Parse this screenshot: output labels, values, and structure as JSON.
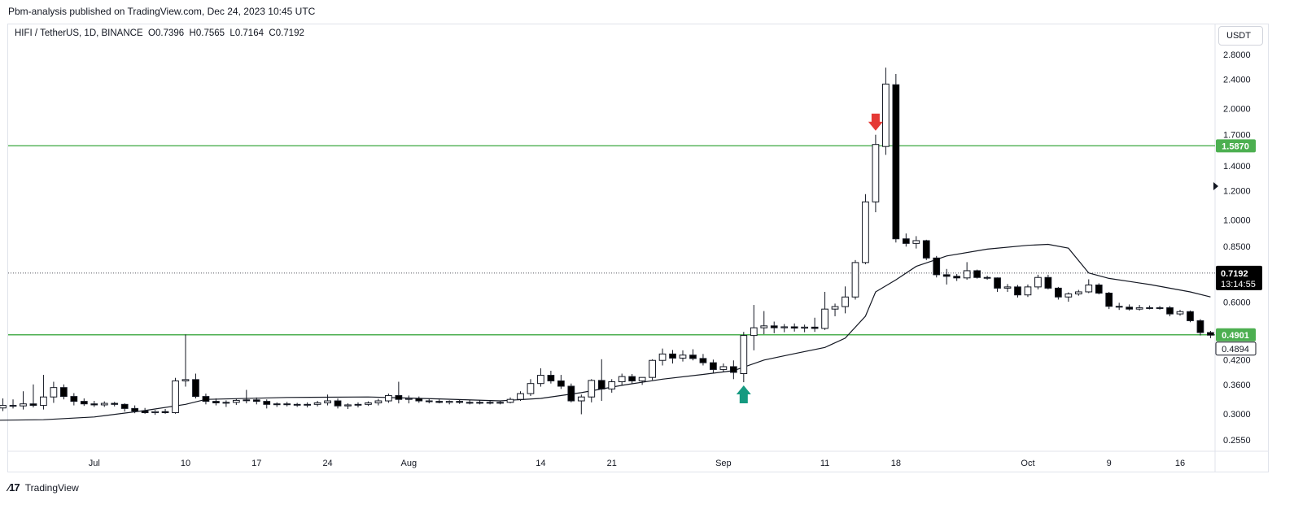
{
  "header": {
    "publisher_line": "Pbm-analysis published on TradingView.com, Dec 24, 2023 10:45 UTC"
  },
  "legend": {
    "symbol": "HIFI / TetherUS, 1D, BINANCE",
    "open": "O0.7396",
    "high": "H0.7565",
    "low": "L0.7164",
    "close": "C0.7192"
  },
  "currency_button": {
    "label": "USDT"
  },
  "footer": {
    "brand": "TradingView"
  },
  "colors": {
    "level_line": "#4caf50",
    "bear_candle": "#000000",
    "bull_candle": "#ffffff",
    "sell_arrow": "#e53935",
    "buy_arrow": "#159a80",
    "price_tag": "#000000"
  },
  "chart_data": {
    "type": "candlestick",
    "scale": "log",
    "y_ticks": [
      "2.8000",
      "2.4000",
      "2.0000",
      "1.7000",
      "1.4000",
      "1.2000",
      "1.0000",
      "0.8500",
      "0.6000",
      "0.4200",
      "0.3600",
      "0.3000",
      "0.2550"
    ],
    "x_ticks": [
      {
        "label": "Jul",
        "date": "2023-07-01"
      },
      {
        "label": "10",
        "date": "2023-07-10"
      },
      {
        "label": "17",
        "date": "2023-07-17"
      },
      {
        "label": "24",
        "date": "2023-07-24"
      },
      {
        "label": "Aug",
        "date": "2023-08-01"
      },
      {
        "label": "14",
        "date": "2023-08-14"
      },
      {
        "label": "21",
        "date": "2023-08-21"
      },
      {
        "label": "Sep",
        "date": "2023-09-01"
      },
      {
        "label": "11",
        "date": "2023-09-11"
      },
      {
        "label": "18",
        "date": "2023-09-18"
      },
      {
        "label": "Oct",
        "date": "2023-10-01"
      },
      {
        "label": "9",
        "date": "2023-10-09"
      },
      {
        "label": "16",
        "date": "2023-10-16"
      }
    ],
    "horizontal_levels": [
      {
        "value": 1.587,
        "label": "1.5870"
      },
      {
        "value": 0.4901,
        "label": "0.4901"
      }
    ],
    "last_price": {
      "value": 0.7192,
      "label": "0.7192",
      "countdown": "13:14:55"
    },
    "secondary_price": {
      "value": 0.4894,
      "label": "0.4894"
    },
    "candles": [
      {
        "date": "2023-06-21",
        "o": 0.305,
        "h": 0.318,
        "l": 0.296,
        "c": 0.311
      },
      {
        "date": "2023-06-22",
        "o": 0.311,
        "h": 0.33,
        "l": 0.305,
        "c": 0.316
      },
      {
        "date": "2023-06-23",
        "o": 0.316,
        "h": 0.328,
        "l": 0.31,
        "c": 0.315
      },
      {
        "date": "2023-06-24",
        "o": 0.315,
        "h": 0.345,
        "l": 0.308,
        "c": 0.319
      },
      {
        "date": "2023-06-25",
        "o": 0.319,
        "h": 0.36,
        "l": 0.312,
        "c": 0.316
      },
      {
        "date": "2023-06-26",
        "o": 0.316,
        "h": 0.382,
        "l": 0.308,
        "c": 0.333
      },
      {
        "date": "2023-06-27",
        "o": 0.333,
        "h": 0.366,
        "l": 0.321,
        "c": 0.353
      },
      {
        "date": "2023-06-28",
        "o": 0.353,
        "h": 0.36,
        "l": 0.328,
        "c": 0.334
      },
      {
        "date": "2023-06-29",
        "o": 0.334,
        "h": 0.341,
        "l": 0.316,
        "c": 0.324
      },
      {
        "date": "2023-06-30",
        "o": 0.324,
        "h": 0.33,
        "l": 0.315,
        "c": 0.319
      },
      {
        "date": "2023-07-01",
        "o": 0.319,
        "h": 0.325,
        "l": 0.313,
        "c": 0.317
      },
      {
        "date": "2023-07-02",
        "o": 0.317,
        "h": 0.324,
        "l": 0.313,
        "c": 0.32
      },
      {
        "date": "2023-07-03",
        "o": 0.32,
        "h": 0.323,
        "l": 0.314,
        "c": 0.318
      },
      {
        "date": "2023-07-04",
        "o": 0.318,
        "h": 0.32,
        "l": 0.304,
        "c": 0.31
      },
      {
        "date": "2023-07-05",
        "o": 0.31,
        "h": 0.316,
        "l": 0.301,
        "c": 0.305
      },
      {
        "date": "2023-07-06",
        "o": 0.305,
        "h": 0.311,
        "l": 0.3,
        "c": 0.302
      },
      {
        "date": "2023-07-07",
        "o": 0.302,
        "h": 0.307,
        "l": 0.298,
        "c": 0.304
      },
      {
        "date": "2023-07-08",
        "o": 0.304,
        "h": 0.309,
        "l": 0.3,
        "c": 0.302
      },
      {
        "date": "2023-07-09",
        "o": 0.302,
        "h": 0.375,
        "l": 0.3,
        "c": 0.368
      },
      {
        "date": "2023-07-10",
        "o": 0.368,
        "h": 0.491,
        "l": 0.355,
        "c": 0.371
      },
      {
        "date": "2023-07-11",
        "o": 0.371,
        "h": 0.385,
        "l": 0.33,
        "c": 0.334
      },
      {
        "date": "2023-07-12",
        "o": 0.334,
        "h": 0.34,
        "l": 0.318,
        "c": 0.324
      },
      {
        "date": "2023-07-13",
        "o": 0.324,
        "h": 0.33,
        "l": 0.316,
        "c": 0.321
      },
      {
        "date": "2023-07-14",
        "o": 0.321,
        "h": 0.326,
        "l": 0.313,
        "c": 0.322
      },
      {
        "date": "2023-07-15",
        "o": 0.322,
        "h": 0.33,
        "l": 0.317,
        "c": 0.326
      },
      {
        "date": "2023-07-16",
        "o": 0.326,
        "h": 0.348,
        "l": 0.32,
        "c": 0.327
      },
      {
        "date": "2023-07-17",
        "o": 0.327,
        "h": 0.332,
        "l": 0.318,
        "c": 0.324
      },
      {
        "date": "2023-07-18",
        "o": 0.324,
        "h": 0.328,
        "l": 0.31,
        "c": 0.318
      },
      {
        "date": "2023-07-19",
        "o": 0.318,
        "h": 0.322,
        "l": 0.313,
        "c": 0.319
      },
      {
        "date": "2023-07-20",
        "o": 0.319,
        "h": 0.323,
        "l": 0.314,
        "c": 0.318
      },
      {
        "date": "2023-07-21",
        "o": 0.318,
        "h": 0.321,
        "l": 0.313,
        "c": 0.317
      },
      {
        "date": "2023-07-22",
        "o": 0.317,
        "h": 0.322,
        "l": 0.312,
        "c": 0.318
      },
      {
        "date": "2023-07-23",
        "o": 0.318,
        "h": 0.325,
        "l": 0.314,
        "c": 0.321
      },
      {
        "date": "2023-07-24",
        "o": 0.321,
        "h": 0.338,
        "l": 0.316,
        "c": 0.325
      },
      {
        "date": "2023-07-25",
        "o": 0.325,
        "h": 0.33,
        "l": 0.31,
        "c": 0.315
      },
      {
        "date": "2023-07-26",
        "o": 0.315,
        "h": 0.32,
        "l": 0.309,
        "c": 0.317
      },
      {
        "date": "2023-07-27",
        "o": 0.317,
        "h": 0.322,
        "l": 0.312,
        "c": 0.318
      },
      {
        "date": "2023-07-28",
        "o": 0.318,
        "h": 0.324,
        "l": 0.315,
        "c": 0.321
      },
      {
        "date": "2023-07-29",
        "o": 0.321,
        "h": 0.329,
        "l": 0.316,
        "c": 0.325
      },
      {
        "date": "2023-07-30",
        "o": 0.325,
        "h": 0.34,
        "l": 0.321,
        "c": 0.336
      },
      {
        "date": "2023-07-31",
        "o": 0.336,
        "h": 0.366,
        "l": 0.32,
        "c": 0.328
      },
      {
        "date": "2023-08-01",
        "o": 0.328,
        "h": 0.336,
        "l": 0.32,
        "c": 0.33
      },
      {
        "date": "2023-08-02",
        "o": 0.33,
        "h": 0.334,
        "l": 0.321,
        "c": 0.325
      },
      {
        "date": "2023-08-03",
        "o": 0.325,
        "h": 0.33,
        "l": 0.32,
        "c": 0.324
      },
      {
        "date": "2023-08-04",
        "o": 0.324,
        "h": 0.328,
        "l": 0.32,
        "c": 0.322
      },
      {
        "date": "2023-08-05",
        "o": 0.322,
        "h": 0.326,
        "l": 0.318,
        "c": 0.324
      },
      {
        "date": "2023-08-06",
        "o": 0.324,
        "h": 0.328,
        "l": 0.319,
        "c": 0.322
      },
      {
        "date": "2023-08-07",
        "o": 0.322,
        "h": 0.327,
        "l": 0.318,
        "c": 0.321
      },
      {
        "date": "2023-08-08",
        "o": 0.321,
        "h": 0.326,
        "l": 0.318,
        "c": 0.322
      },
      {
        "date": "2023-08-09",
        "o": 0.322,
        "h": 0.326,
        "l": 0.318,
        "c": 0.321
      },
      {
        "date": "2023-08-10",
        "o": 0.321,
        "h": 0.325,
        "l": 0.318,
        "c": 0.322
      },
      {
        "date": "2023-08-11",
        "o": 0.322,
        "h": 0.332,
        "l": 0.32,
        "c": 0.328
      },
      {
        "date": "2023-08-12",
        "o": 0.328,
        "h": 0.345,
        "l": 0.325,
        "c": 0.34
      },
      {
        "date": "2023-08-13",
        "o": 0.34,
        "h": 0.372,
        "l": 0.335,
        "c": 0.362
      },
      {
        "date": "2023-08-14",
        "o": 0.362,
        "h": 0.398,
        "l": 0.355,
        "c": 0.381
      },
      {
        "date": "2023-08-15",
        "o": 0.381,
        "h": 0.392,
        "l": 0.362,
        "c": 0.368
      },
      {
        "date": "2023-08-16",
        "o": 0.368,
        "h": 0.382,
        "l": 0.35,
        "c": 0.356
      },
      {
        "date": "2023-08-17",
        "o": 0.356,
        "h": 0.362,
        "l": 0.322,
        "c": 0.325
      },
      {
        "date": "2023-08-18",
        "o": 0.325,
        "h": 0.338,
        "l": 0.299,
        "c": 0.333
      },
      {
        "date": "2023-08-19",
        "o": 0.333,
        "h": 0.372,
        "l": 0.322,
        "c": 0.369
      },
      {
        "date": "2023-08-20",
        "o": 0.369,
        "h": 0.421,
        "l": 0.325,
        "c": 0.35
      },
      {
        "date": "2023-08-21",
        "o": 0.35,
        "h": 0.372,
        "l": 0.342,
        "c": 0.366
      },
      {
        "date": "2023-08-22",
        "o": 0.366,
        "h": 0.385,
        "l": 0.358,
        "c": 0.378
      },
      {
        "date": "2023-08-23",
        "o": 0.378,
        "h": 0.384,
        "l": 0.362,
        "c": 0.368
      },
      {
        "date": "2023-08-24",
        "o": 0.368,
        "h": 0.376,
        "l": 0.359,
        "c": 0.376
      },
      {
        "date": "2023-08-25",
        "o": 0.376,
        "h": 0.421,
        "l": 0.37,
        "c": 0.418
      },
      {
        "date": "2023-08-26",
        "o": 0.418,
        "h": 0.45,
        "l": 0.405,
        "c": 0.435
      },
      {
        "date": "2023-08-27",
        "o": 0.435,
        "h": 0.446,
        "l": 0.41,
        "c": 0.424
      },
      {
        "date": "2023-08-28",
        "o": 0.424,
        "h": 0.445,
        "l": 0.415,
        "c": 0.432
      },
      {
        "date": "2023-08-29",
        "o": 0.432,
        "h": 0.448,
        "l": 0.418,
        "c": 0.423
      },
      {
        "date": "2023-08-30",
        "o": 0.423,
        "h": 0.435,
        "l": 0.405,
        "c": 0.412
      },
      {
        "date": "2023-08-31",
        "o": 0.412,
        "h": 0.42,
        "l": 0.386,
        "c": 0.395
      },
      {
        "date": "2023-09-01",
        "o": 0.395,
        "h": 0.41,
        "l": 0.388,
        "c": 0.402
      },
      {
        "date": "2023-09-02",
        "o": 0.402,
        "h": 0.418,
        "l": 0.372,
        "c": 0.388
      },
      {
        "date": "2023-09-03",
        "o": 0.385,
        "h": 0.499,
        "l": 0.365,
        "c": 0.488
      },
      {
        "date": "2023-09-04",
        "o": 0.488,
        "h": 0.59,
        "l": 0.445,
        "c": 0.512
      },
      {
        "date": "2023-09-05",
        "o": 0.512,
        "h": 0.568,
        "l": 0.492,
        "c": 0.518
      },
      {
        "date": "2023-09-06",
        "o": 0.518,
        "h": 0.532,
        "l": 0.495,
        "c": 0.512
      },
      {
        "date": "2023-09-07",
        "o": 0.512,
        "h": 0.524,
        "l": 0.498,
        "c": 0.515
      },
      {
        "date": "2023-09-08",
        "o": 0.515,
        "h": 0.526,
        "l": 0.5,
        "c": 0.511
      },
      {
        "date": "2023-09-09",
        "o": 0.511,
        "h": 0.522,
        "l": 0.498,
        "c": 0.514
      },
      {
        "date": "2023-09-10",
        "o": 0.514,
        "h": 0.545,
        "l": 0.499,
        "c": 0.51
      },
      {
        "date": "2023-09-11",
        "o": 0.51,
        "h": 0.64,
        "l": 0.505,
        "c": 0.575
      },
      {
        "date": "2023-09-12",
        "o": 0.575,
        "h": 0.595,
        "l": 0.55,
        "c": 0.584
      },
      {
        "date": "2023-09-13",
        "o": 0.584,
        "h": 0.662,
        "l": 0.56,
        "c": 0.62
      },
      {
        "date": "2023-09-14",
        "o": 0.62,
        "h": 0.78,
        "l": 0.61,
        "c": 0.768
      },
      {
        "date": "2023-09-15",
        "o": 0.768,
        "h": 1.175,
        "l": 0.76,
        "c": 1.12
      },
      {
        "date": "2023-09-16",
        "o": 1.12,
        "h": 1.7,
        "l": 1.05,
        "c": 1.6
      },
      {
        "date": "2023-09-17",
        "o": 1.58,
        "h": 2.58,
        "l": 1.5,
        "c": 2.33
      },
      {
        "date": "2023-09-18",
        "o": 2.32,
        "h": 2.48,
        "l": 0.87,
        "c": 0.89
      },
      {
        "date": "2023-09-19",
        "o": 0.89,
        "h": 0.92,
        "l": 0.848,
        "c": 0.865
      },
      {
        "date": "2023-09-20",
        "o": 0.865,
        "h": 0.905,
        "l": 0.838,
        "c": 0.88
      },
      {
        "date": "2023-09-21",
        "o": 0.88,
        "h": 0.885,
        "l": 0.78,
        "c": 0.79
      },
      {
        "date": "2023-09-22",
        "o": 0.79,
        "h": 0.8,
        "l": 0.7,
        "c": 0.712
      },
      {
        "date": "2023-09-23",
        "o": 0.712,
        "h": 0.738,
        "l": 0.67,
        "c": 0.705
      },
      {
        "date": "2023-09-24",
        "o": 0.705,
        "h": 0.715,
        "l": 0.685,
        "c": 0.698
      },
      {
        "date": "2023-09-25",
        "o": 0.698,
        "h": 0.77,
        "l": 0.69,
        "c": 0.73
      },
      {
        "date": "2023-09-26",
        "o": 0.73,
        "h": 0.735,
        "l": 0.695,
        "c": 0.7
      },
      {
        "date": "2023-09-27",
        "o": 0.7,
        "h": 0.708,
        "l": 0.69,
        "c": 0.698
      },
      {
        "date": "2023-09-28",
        "o": 0.698,
        "h": 0.7,
        "l": 0.64,
        "c": 0.655
      },
      {
        "date": "2023-09-29",
        "o": 0.655,
        "h": 0.672,
        "l": 0.64,
        "c": 0.66
      },
      {
        "date": "2023-09-30",
        "o": 0.66,
        "h": 0.668,
        "l": 0.618,
        "c": 0.628
      },
      {
        "date": "2023-10-01",
        "o": 0.628,
        "h": 0.67,
        "l": 0.62,
        "c": 0.66
      },
      {
        "date": "2023-10-02",
        "o": 0.66,
        "h": 0.712,
        "l": 0.65,
        "c": 0.7
      },
      {
        "date": "2023-10-03",
        "o": 0.7,
        "h": 0.712,
        "l": 0.65,
        "c": 0.655
      },
      {
        "date": "2023-10-04",
        "o": 0.655,
        "h": 0.66,
        "l": 0.61,
        "c": 0.62
      },
      {
        "date": "2023-10-05",
        "o": 0.62,
        "h": 0.638,
        "l": 0.602,
        "c": 0.632
      },
      {
        "date": "2023-10-06",
        "o": 0.632,
        "h": 0.648,
        "l": 0.625,
        "c": 0.64
      },
      {
        "date": "2023-10-07",
        "o": 0.64,
        "h": 0.692,
        "l": 0.635,
        "c": 0.668
      },
      {
        "date": "2023-10-08",
        "o": 0.668,
        "h": 0.675,
        "l": 0.63,
        "c": 0.635
      },
      {
        "date": "2023-10-09",
        "o": 0.635,
        "h": 0.64,
        "l": 0.575,
        "c": 0.585
      },
      {
        "date": "2023-10-10",
        "o": 0.585,
        "h": 0.598,
        "l": 0.572,
        "c": 0.582
      },
      {
        "date": "2023-10-11",
        "o": 0.582,
        "h": 0.592,
        "l": 0.57,
        "c": 0.575
      },
      {
        "date": "2023-10-12",
        "o": 0.575,
        "h": 0.59,
        "l": 0.57,
        "c": 0.58
      },
      {
        "date": "2023-10-13",
        "o": 0.58,
        "h": 0.588,
        "l": 0.574,
        "c": 0.578
      },
      {
        "date": "2023-10-14",
        "o": 0.578,
        "h": 0.586,
        "l": 0.573,
        "c": 0.58
      },
      {
        "date": "2023-10-15",
        "o": 0.58,
        "h": 0.586,
        "l": 0.55,
        "c": 0.558
      },
      {
        "date": "2023-10-16",
        "o": 0.558,
        "h": 0.572,
        "l": 0.552,
        "c": 0.566
      },
      {
        "date": "2023-10-17",
        "o": 0.566,
        "h": 0.57,
        "l": 0.53,
        "c": 0.535
      },
      {
        "date": "2023-10-18",
        "o": 0.535,
        "h": 0.54,
        "l": 0.488,
        "c": 0.497
      },
      {
        "date": "2023-10-19",
        "o": 0.497,
        "h": 0.502,
        "l": 0.48,
        "c": 0.489
      }
    ],
    "moving_average": [
      {
        "date": "2023-06-21",
        "v": 0.288
      },
      {
        "date": "2023-06-26",
        "v": 0.289
      },
      {
        "date": "2023-07-01",
        "v": 0.294
      },
      {
        "date": "2023-07-06",
        "v": 0.306
      },
      {
        "date": "2023-07-10",
        "v": 0.318
      },
      {
        "date": "2023-07-12",
        "v": 0.328
      },
      {
        "date": "2023-07-20",
        "v": 0.332
      },
      {
        "date": "2023-07-28",
        "v": 0.333
      },
      {
        "date": "2023-08-04",
        "v": 0.329
      },
      {
        "date": "2023-08-10",
        "v": 0.325
      },
      {
        "date": "2023-08-14",
        "v": 0.33
      },
      {
        "date": "2023-08-18",
        "v": 0.342
      },
      {
        "date": "2023-08-22",
        "v": 0.358
      },
      {
        "date": "2023-08-26",
        "v": 0.372
      },
      {
        "date": "2023-08-30",
        "v": 0.383
      },
      {
        "date": "2023-09-02",
        "v": 0.392
      },
      {
        "date": "2023-09-05",
        "v": 0.419
      },
      {
        "date": "2023-09-08",
        "v": 0.436
      },
      {
        "date": "2023-09-11",
        "v": 0.453
      },
      {
        "date": "2023-09-13",
        "v": 0.48
      },
      {
        "date": "2023-09-15",
        "v": 0.55
      },
      {
        "date": "2023-09-16",
        "v": 0.64
      },
      {
        "date": "2023-09-18",
        "v": 0.69
      },
      {
        "date": "2023-09-20",
        "v": 0.75
      },
      {
        "date": "2023-09-23",
        "v": 0.8
      },
      {
        "date": "2023-09-27",
        "v": 0.835
      },
      {
        "date": "2023-10-01",
        "v": 0.855
      },
      {
        "date": "2023-10-03",
        "v": 0.86
      },
      {
        "date": "2023-10-05",
        "v": 0.84
      },
      {
        "date": "2023-10-07",
        "v": 0.72
      },
      {
        "date": "2023-10-09",
        "v": 0.696
      },
      {
        "date": "2023-10-13",
        "v": 0.67
      },
      {
        "date": "2023-10-17",
        "v": 0.64
      },
      {
        "date": "2023-10-19",
        "v": 0.62
      }
    ],
    "markers": [
      {
        "type": "sell-arrow",
        "date": "2023-09-16",
        "position": "above"
      },
      {
        "type": "buy-arrow",
        "date": "2023-09-03",
        "position": "below"
      }
    ],
    "grid": false,
    "title": "",
    "xlabel": "",
    "ylabel": ""
  }
}
